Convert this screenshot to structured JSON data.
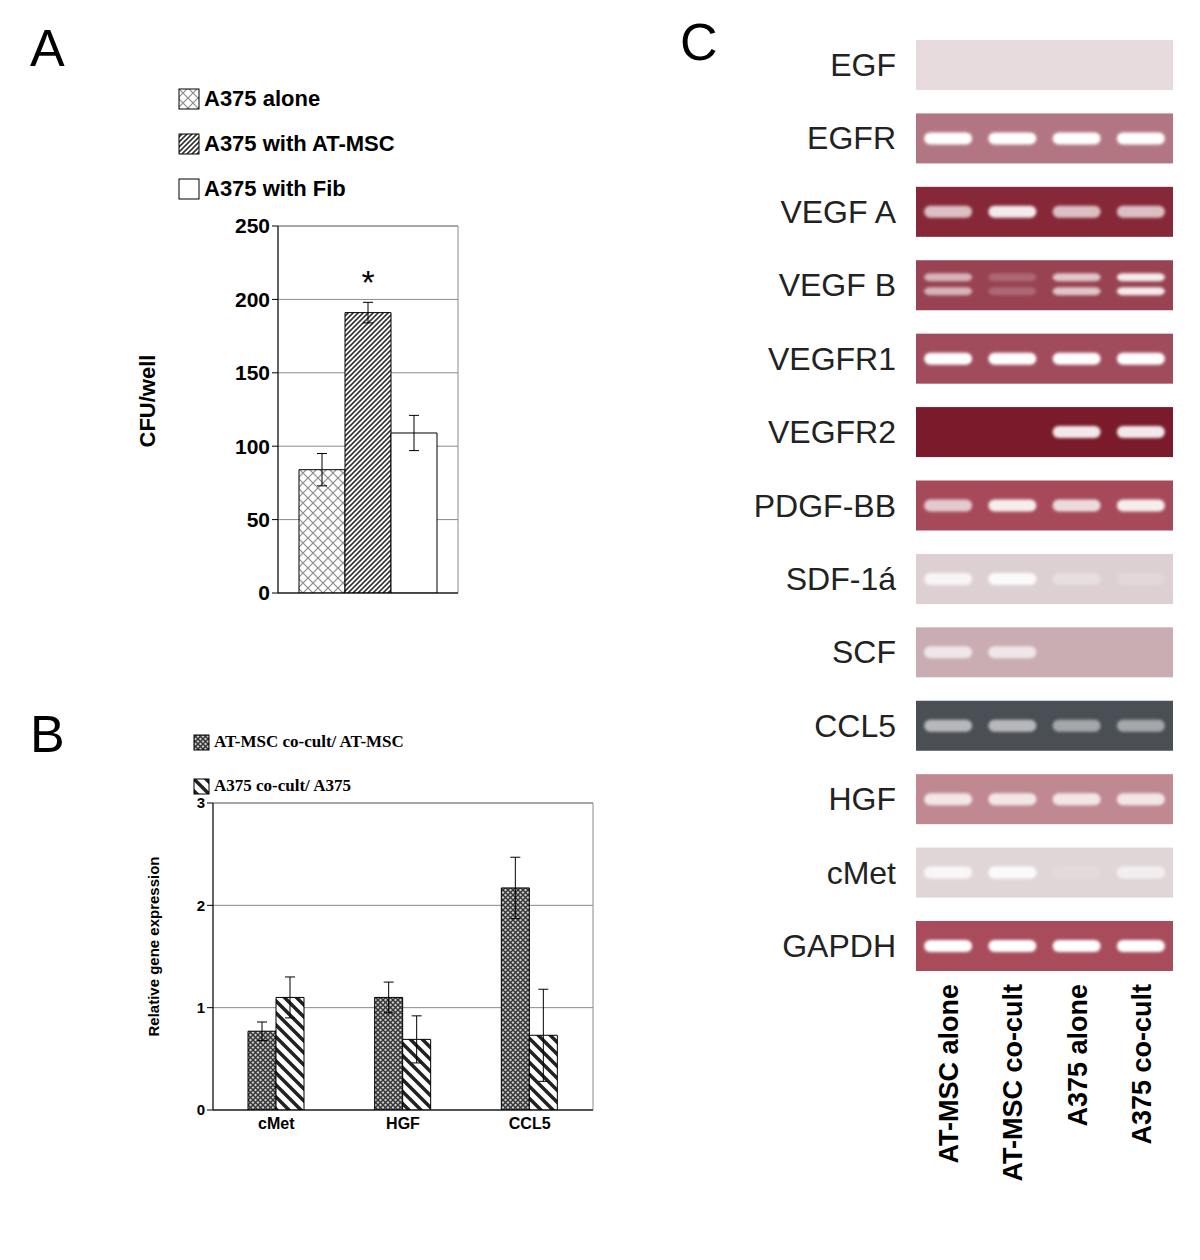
{
  "chart_data": [
    {
      "type": "bar",
      "title": "A",
      "categories": [
        null
      ],
      "ylabel": "CFU/well",
      "ylim": [
        0,
        250
      ],
      "yticks": [
        0,
        50,
        100,
        150,
        200,
        250
      ],
      "grid": true,
      "tick_labels": "y",
      "series": [
        {
          "name": "A375 alone",
          "color": "#8c8c8c",
          "values": [
            84
          ],
          "errors": [
            11
          ]
        },
        {
          "name": "A375 with AT-MSC",
          "color": "#333333",
          "values": [
            191
          ],
          "errors": [
            7
          ]
        },
        {
          "name": "A375 with Fib",
          "color": "#ffffff",
          "values": [
            109
          ],
          "errors": [
            12
          ]
        }
      ],
      "annotations": [
        {
          "text": "*",
          "series": "A375 with AT-MSC"
        }
      ]
    },
    {
      "type": "bar",
      "title": "B",
      "categories": [
        "cMet",
        "HGF",
        "CCL5"
      ],
      "ylabel": "Relative gene expression",
      "ylim": [
        0,
        3
      ],
      "yticks": [
        0,
        1,
        2,
        3
      ],
      "grid": true,
      "series": [
        {
          "name": "AT-MSC co-cult/ AT-MSC",
          "color": "#333333",
          "values": [
            0.77,
            1.1,
            2.17
          ],
          "errors": [
            0.09,
            0.15,
            0.3
          ]
        },
        {
          "name": "A375 co-cult/ A375",
          "color": "#222222",
          "values": [
            1.1,
            0.69,
            0.73
          ],
          "errors": [
            0.2,
            0.23,
            0.45
          ]
        }
      ]
    },
    {
      "type": "gel",
      "title": "C",
      "rows": [
        "EGF",
        "EGFR",
        "VEGF A",
        "VEGF B",
        "VEGFR1",
        "VEGFR2",
        "PDGF-BB",
        "SDF-1á",
        "SCF",
        "CCL5",
        "HGF",
        "cMet",
        "GAPDH"
      ],
      "columns": [
        "AT-MSC alone",
        "AT-MSC co-cult",
        "A375 alone",
        "A375 co-cult"
      ],
      "bands": [
        1,
        1,
        1,
        2,
        1,
        1,
        1,
        1,
        1,
        1,
        1,
        1,
        1
      ],
      "colors": [
        "#e6dadd",
        "#b27682",
        "#862838",
        "#984252",
        "#a04c5c",
        "#7a1a2a",
        "#a64a5a",
        "#ddd0d3",
        "#c9adb3",
        "#4a4f55",
        "#c08890",
        "#e0d6d8",
        "#a84c5c"
      ],
      "values": [
        [
          0,
          0,
          0,
          0
        ],
        [
          1,
          1,
          1,
          1
        ],
        [
          0.7,
          0.9,
          0.7,
          0.7
        ],
        [
          0.6,
          0.2,
          0.7,
          0.9
        ],
        [
          1,
          1,
          1,
          1
        ],
        [
          0,
          0,
          0.9,
          0.9
        ],
        [
          0.7,
          0.9,
          0.8,
          0.9
        ],
        [
          0.8,
          0.9,
          0.3,
          0.15
        ],
        [
          0.7,
          0.7,
          0,
          0
        ],
        [
          0.6,
          0.6,
          0.5,
          0.5
        ],
        [
          0.8,
          0.8,
          0.8,
          0.8
        ],
        [
          0.8,
          0.9,
          0.1,
          0.6
        ],
        [
          1,
          1,
          1,
          1
        ]
      ]
    }
  ]
}
